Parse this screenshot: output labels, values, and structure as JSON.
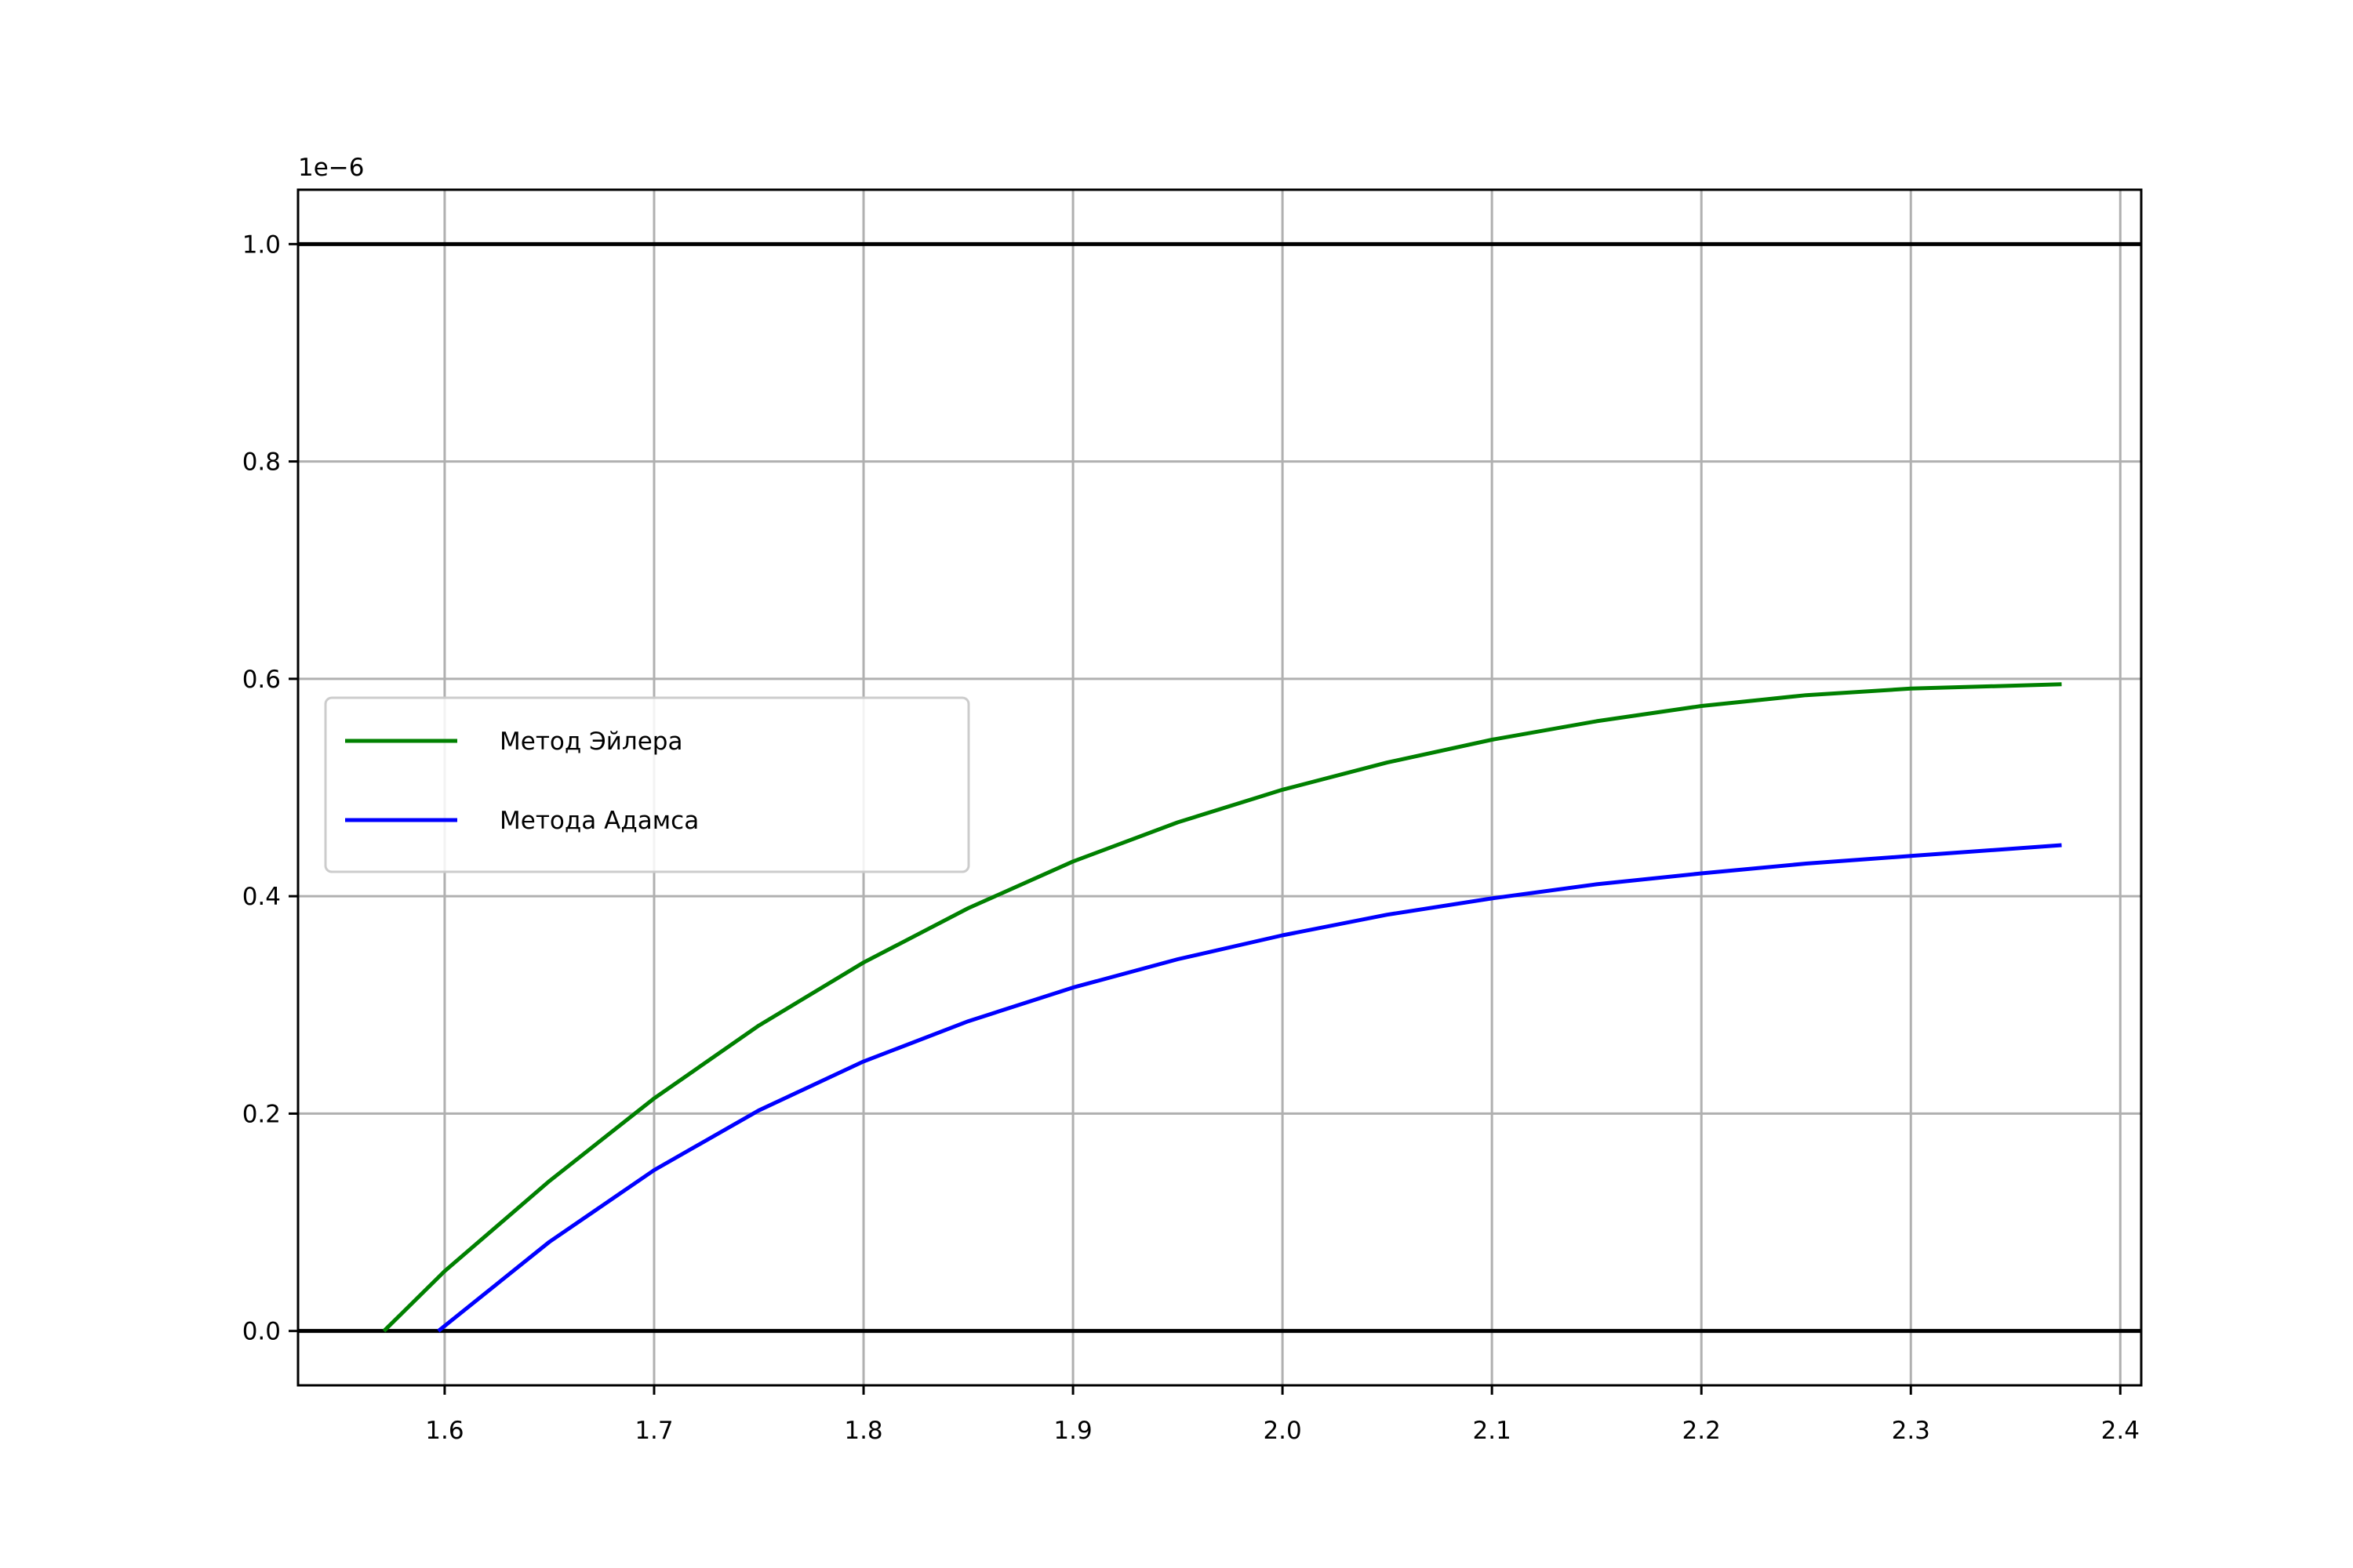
{
  "chart_data": {
    "type": "line",
    "title": "",
    "xlabel": "",
    "ylabel": "",
    "y_offset_label": "1e−6",
    "xlim": [
      1.53,
      2.41
    ],
    "ylim": [
      -0.05,
      1.05
    ],
    "y_scale": 1e-06,
    "grid": true,
    "legend_position": "center-left",
    "x_ticks": [
      1.6,
      1.7,
      1.8,
      1.9,
      2.0,
      2.1,
      2.2,
      2.3,
      2.4
    ],
    "x_tick_labels": [
      "1.6",
      "1.7",
      "1.8",
      "1.9",
      "2.0",
      "2.1",
      "2.2",
      "2.3",
      "2.4"
    ],
    "y_ticks": [
      0.0,
      0.2,
      0.4,
      0.6,
      0.8,
      1.0
    ],
    "y_tick_labels": [
      "0.0",
      "0.2",
      "0.4",
      "0.6",
      "0.8",
      "1.0"
    ],
    "reference_lines": [
      {
        "y": 0.0,
        "color": "#000000"
      },
      {
        "y": 1.0,
        "color": "#000000"
      }
    ],
    "series": [
      {
        "name": "Метод Эйлера",
        "color": "#008000",
        "x": [
          1.571,
          1.6,
          1.65,
          1.7,
          1.75,
          1.8,
          1.85,
          1.9,
          1.95,
          2.0,
          2.05,
          2.1,
          2.15,
          2.2,
          2.25,
          2.3,
          2.372
        ],
        "y": [
          0.0,
          0.055,
          0.138,
          0.214,
          0.281,
          0.339,
          0.389,
          0.432,
          0.468,
          0.498,
          0.523,
          0.544,
          0.561,
          0.575,
          0.585,
          0.591,
          0.595
        ]
      },
      {
        "name": "Метода Адамса",
        "color": "#0000ff",
        "x": [
          1.597,
          1.65,
          1.7,
          1.75,
          1.8,
          1.85,
          1.9,
          1.95,
          2.0,
          2.05,
          2.1,
          2.15,
          2.2,
          2.25,
          2.3,
          2.372
        ],
        "y": [
          0.0,
          0.082,
          0.148,
          0.203,
          0.248,
          0.285,
          0.316,
          0.342,
          0.364,
          0.383,
          0.398,
          0.411,
          0.421,
          0.43,
          0.437,
          0.447
        ]
      }
    ]
  }
}
